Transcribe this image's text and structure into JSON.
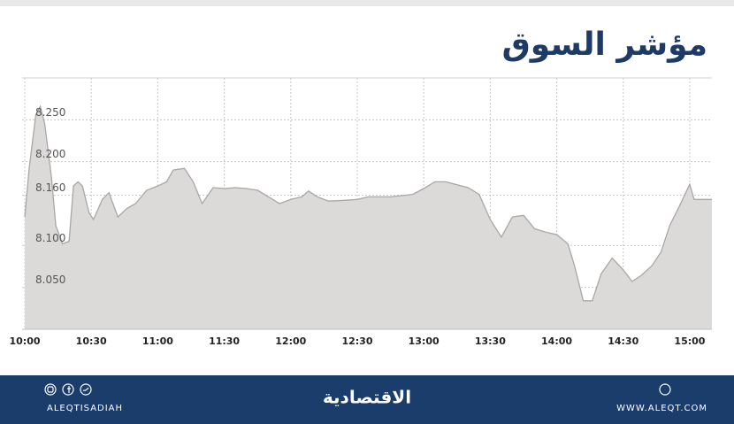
{
  "chart_data": {
    "type": "area",
    "title": "مؤشر السوق",
    "color": "#dcd9d9",
    "line_color": "#a9a6a6",
    "grid": true,
    "xlim": [
      "10:00",
      "15:10"
    ],
    "xticks": [
      "10:00",
      "10:30",
      "11:00",
      "11:30",
      "12:00",
      "12:30",
      "13:00",
      "13:30",
      "14:00",
      "14:30",
      "15:00"
    ],
    "ylim": [
      8.0,
      8.3
    ],
    "yticks": [
      {
        "value": 8.05,
        "label": "8.050"
      },
      {
        "value": 8.1,
        "label": "8.100"
      },
      {
        "value": 8.16,
        "label": "8.160"
      },
      {
        "value": 8.2,
        "label": "8.200"
      },
      {
        "value": 8.25,
        "label": "8.250"
      }
    ],
    "x": [
      "10:00",
      "10:02",
      "10:05",
      "10:07",
      "10:09",
      "10:12",
      "10:14",
      "10:17",
      "10:20",
      "10:22",
      "10:24",
      "10:26",
      "10:29",
      "10:31",
      "10:35",
      "10:38",
      "10:42",
      "10:46",
      "10:50",
      "10:55",
      "11:00",
      "11:04",
      "11:07",
      "11:12",
      "11:16",
      "11:20",
      "11:25",
      "11:30",
      "11:35",
      "11:40",
      "11:45",
      "11:50",
      "11:55",
      "12:00",
      "12:05",
      "12:08",
      "12:12",
      "12:17",
      "12:25",
      "12:30",
      "12:35",
      "12:45",
      "12:55",
      "13:00",
      "13:05",
      "13:10",
      "13:20",
      "13:25",
      "13:30",
      "13:35",
      "13:40",
      "13:45",
      "13:50",
      "13:55",
      "14:00",
      "14:05",
      "14:08",
      "14:12",
      "14:16",
      "14:20",
      "14:25",
      "14:30",
      "14:34",
      "14:38",
      "14:43",
      "14:47",
      "14:51",
      "14:55",
      "15:00",
      "15:02",
      "15:10"
    ],
    "values": [
      8.134,
      8.192,
      8.256,
      8.266,
      8.245,
      8.182,
      8.124,
      8.102,
      8.105,
      8.171,
      8.176,
      8.171,
      8.139,
      8.131,
      8.155,
      8.163,
      8.134,
      8.144,
      8.15,
      8.166,
      8.171,
      8.176,
      8.19,
      8.192,
      8.176,
      8.15,
      8.169,
      8.168,
      8.169,
      8.168,
      8.166,
      8.158,
      8.15,
      8.155,
      8.158,
      8.165,
      8.158,
      8.153,
      8.154,
      8.155,
      8.158,
      8.158,
      8.161,
      8.168,
      8.176,
      8.176,
      8.169,
      8.161,
      8.131,
      8.11,
      8.134,
      8.136,
      8.12,
      8.116,
      8.113,
      8.102,
      8.076,
      8.034,
      8.034,
      8.066,
      8.085,
      8.071,
      8.057,
      8.064,
      8.076,
      8.092,
      8.124,
      8.145,
      8.173,
      8.155,
      8.155
    ]
  },
  "footer": {
    "left": "ALEQTISADIAH",
    "logo": "الاقتصادية",
    "right": "WWW.ALEQT.COM"
  }
}
